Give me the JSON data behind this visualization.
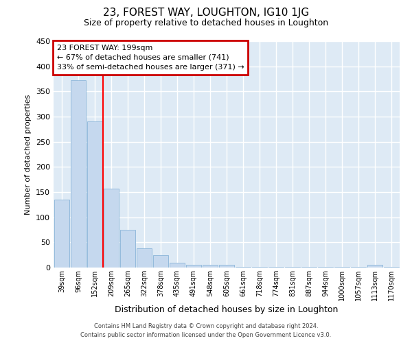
{
  "title": "23, FOREST WAY, LOUGHTON, IG10 1JG",
  "subtitle": "Size of property relative to detached houses in Loughton",
  "xlabel": "Distribution of detached houses by size in Loughton",
  "ylabel": "Number of detached properties",
  "bar_color": "#c5d8ee",
  "bar_edge_color": "#8ab4d8",
  "background_color": "#deeaf5",
  "grid_color": "#ffffff",
  "fig_background": "#ffffff",
  "categories": [
    "39sqm",
    "96sqm",
    "152sqm",
    "209sqm",
    "265sqm",
    "322sqm",
    "378sqm",
    "435sqm",
    "491sqm",
    "548sqm",
    "605sqm",
    "661sqm",
    "718sqm",
    "774sqm",
    "831sqm",
    "887sqm",
    "944sqm",
    "1000sqm",
    "1057sqm",
    "1113sqm",
    "1170sqm"
  ],
  "bar_heights": [
    135,
    372,
    290,
    157,
    75,
    38,
    25,
    10,
    5,
    5,
    5,
    2,
    1,
    1,
    1,
    1,
    1,
    1,
    1,
    5,
    2
  ],
  "red_line_x": 2.5,
  "annotation_text": "23 FOREST WAY: 199sqm\n← 67% of detached houses are smaller (741)\n33% of semi-detached houses are larger (371) →",
  "annotation_box_color": "#ffffff",
  "annotation_border_color": "#cc0000",
  "ylim": [
    0,
    450
  ],
  "yticks": [
    0,
    50,
    100,
    150,
    200,
    250,
    300,
    350,
    400,
    450
  ],
  "footer_line1": "Contains HM Land Registry data © Crown copyright and database right 2024.",
  "footer_line2": "Contains public sector information licensed under the Open Government Licence v3.0."
}
